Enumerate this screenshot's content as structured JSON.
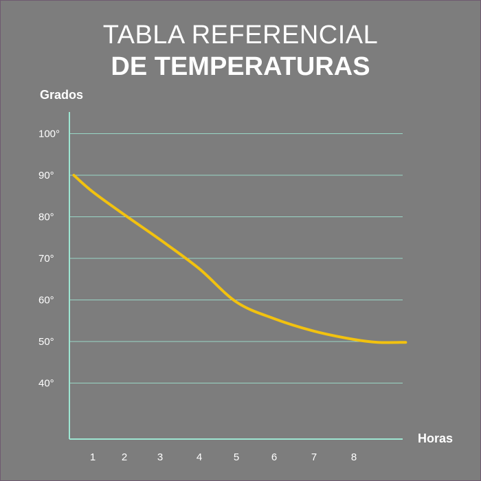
{
  "colors": {
    "background": "#7d7d7d",
    "axis": "#9ee6d2",
    "grid": "#9ee6d2",
    "line": "#f2c20f",
    "text": "#ffffff"
  },
  "chart_data": {
    "type": "line",
    "title_line1": "TABLA REFERENCIAL",
    "title_line2": "DE TEMPERATURAS",
    "ylabel": "Grados",
    "xlabel": "Horas",
    "x_ticks": [
      "1",
      "2",
      "3",
      "4",
      "5",
      "6",
      "7",
      "8"
    ],
    "y_ticks": [
      "100°",
      "90°",
      "80°",
      "70°",
      "60°",
      "50°",
      "40°"
    ],
    "y_tick_values": [
      100,
      90,
      80,
      70,
      60,
      50,
      40
    ],
    "grid": true,
    "series": [
      {
        "x": [
          0.4,
          1,
          2,
          3,
          4,
          5,
          6,
          7,
          8,
          8.6,
          9.3
        ],
        "values": [
          90,
          86,
          80.5,
          74.5,
          67.5,
          59.5,
          55.5,
          52.5,
          50.5,
          49.8,
          49.8
        ]
      }
    ]
  }
}
